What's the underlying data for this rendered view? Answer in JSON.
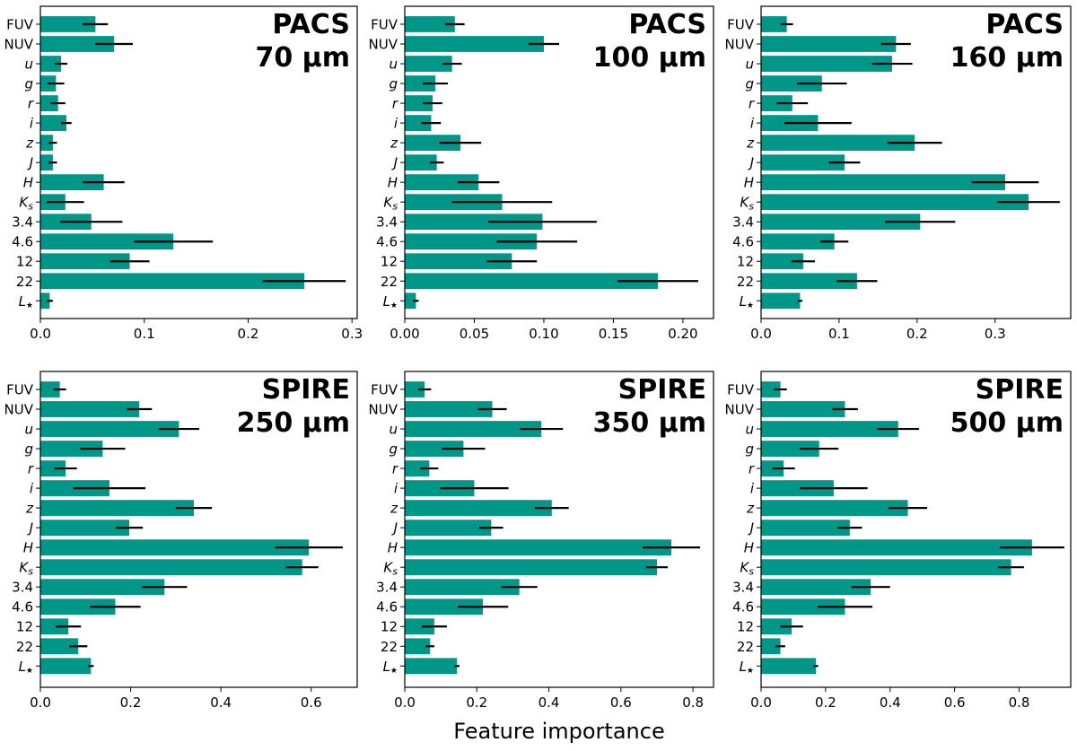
{
  "figure": {
    "xlabel": "Feature importance",
    "bar_color": "#009688",
    "error_color": "#000000"
  },
  "chart_data": [
    {
      "type": "bar",
      "orientation": "horizontal",
      "title_line1": "PACS",
      "title_line2": "70 µm",
      "categories": [
        "FUV",
        "NUV",
        "u",
        "g",
        "r",
        "i",
        "z",
        "J",
        "H",
        "Ks",
        "3.4",
        "4.6",
        "12",
        "22",
        "L★"
      ],
      "values": [
        0.053,
        0.071,
        0.02,
        0.015,
        0.017,
        0.025,
        0.012,
        0.012,
        0.061,
        0.024,
        0.049,
        0.128,
        0.086,
        0.254,
        0.009
      ],
      "errors": [
        0.012,
        0.018,
        0.006,
        0.008,
        0.007,
        0.005,
        0.004,
        0.004,
        0.02,
        0.018,
        0.03,
        0.038,
        0.019,
        0.04,
        0.003
      ],
      "xlim": [
        0,
        0.305
      ],
      "xticks": [
        0.0,
        0.1,
        0.2,
        0.3
      ],
      "xtick_labels": [
        "0.0",
        "0.1",
        "0.2",
        "0.3"
      ]
    },
    {
      "type": "bar",
      "orientation": "horizontal",
      "title_line1": "PACS",
      "title_line2": "100 µm",
      "categories": [
        "FUV",
        "NUV",
        "u",
        "g",
        "r",
        "i",
        "z",
        "J",
        "H",
        "Ks",
        "3.4",
        "4.6",
        "12",
        "22",
        "L★"
      ],
      "values": [
        0.036,
        0.1,
        0.034,
        0.022,
        0.02,
        0.019,
        0.04,
        0.023,
        0.053,
        0.07,
        0.099,
        0.095,
        0.077,
        0.182,
        0.008
      ],
      "errors": [
        0.007,
        0.011,
        0.007,
        0.009,
        0.007,
        0.007,
        0.015,
        0.005,
        0.015,
        0.036,
        0.039,
        0.029,
        0.018,
        0.029,
        0.002
      ],
      "xlim": [
        0,
        0.222
      ],
      "xticks": [
        0.0,
        0.05,
        0.1,
        0.15,
        0.2
      ],
      "xtick_labels": [
        "0.00",
        "0.05",
        "0.10",
        "0.15",
        "0.20"
      ]
    },
    {
      "type": "bar",
      "orientation": "horizontal",
      "title_line1": "PACS",
      "title_line2": "160 µm",
      "categories": [
        "FUV",
        "NUV",
        "u",
        "g",
        "r",
        "i",
        "z",
        "J",
        "H",
        "Ks",
        "3.4",
        "4.6",
        "12",
        "22",
        "L★"
      ],
      "values": [
        0.033,
        0.173,
        0.168,
        0.078,
        0.04,
        0.073,
        0.197,
        0.107,
        0.313,
        0.343,
        0.204,
        0.094,
        0.054,
        0.123,
        0.05
      ],
      "errors": [
        0.008,
        0.019,
        0.026,
        0.032,
        0.02,
        0.043,
        0.035,
        0.02,
        0.043,
        0.04,
        0.045,
        0.018,
        0.015,
        0.026,
        0.003
      ],
      "xlim": [
        0,
        0.397
      ],
      "xticks": [
        0.0,
        0.1,
        0.2,
        0.3
      ],
      "xtick_labels": [
        "0.0",
        "0.1",
        "0.2",
        "0.3"
      ]
    },
    {
      "type": "bar",
      "orientation": "horizontal",
      "title_line1": "SPIRE",
      "title_line2": "250 µm",
      "categories": [
        "FUV",
        "NUV",
        "u",
        "g",
        "r",
        "i",
        "z",
        "J",
        "H",
        "Ks",
        "3.4",
        "4.6",
        "12",
        "22",
        "L★"
      ],
      "values": [
        0.043,
        0.219,
        0.307,
        0.138,
        0.056,
        0.153,
        0.34,
        0.197,
        0.595,
        0.58,
        0.275,
        0.166,
        0.062,
        0.084,
        0.112
      ],
      "errors": [
        0.014,
        0.028,
        0.045,
        0.05,
        0.025,
        0.08,
        0.04,
        0.03,
        0.075,
        0.036,
        0.05,
        0.056,
        0.028,
        0.02,
        0.006
      ],
      "xlim": [
        0,
        0.702
      ],
      "xticks": [
        0.0,
        0.2,
        0.4,
        0.6
      ],
      "xtick_labels": [
        "0.0",
        "0.2",
        "0.4",
        "0.6"
      ]
    },
    {
      "type": "bar",
      "orientation": "horizontal",
      "title_line1": "SPIRE",
      "title_line2": "350 µm",
      "categories": [
        "FUV",
        "NUV",
        "u",
        "g",
        "r",
        "i",
        "z",
        "J",
        "H",
        "Ks",
        "3.4",
        "4.6",
        "12",
        "22",
        "L★"
      ],
      "values": [
        0.055,
        0.243,
        0.379,
        0.163,
        0.068,
        0.193,
        0.408,
        0.24,
        0.74,
        0.7,
        0.318,
        0.217,
        0.082,
        0.07,
        0.145
      ],
      "errors": [
        0.018,
        0.04,
        0.06,
        0.06,
        0.025,
        0.095,
        0.047,
        0.033,
        0.08,
        0.03,
        0.05,
        0.07,
        0.035,
        0.012,
        0.007
      ],
      "xlim": [
        0,
        0.857
      ],
      "xticks": [
        0.0,
        0.2,
        0.4,
        0.6,
        0.8
      ],
      "xtick_labels": [
        "0.0",
        "0.2",
        "0.4",
        "0.6",
        "0.8"
      ]
    },
    {
      "type": "bar",
      "orientation": "horizontal",
      "title_line1": "SPIRE",
      "title_line2": "500 µm",
      "categories": [
        "FUV",
        "NUV",
        "u",
        "g",
        "r",
        "i",
        "z",
        "J",
        "H",
        "Ks",
        "3.4",
        "4.6",
        "12",
        "22",
        "L★"
      ],
      "values": [
        0.06,
        0.26,
        0.425,
        0.18,
        0.07,
        0.225,
        0.455,
        0.275,
        0.84,
        0.775,
        0.34,
        0.26,
        0.095,
        0.06,
        0.17
      ],
      "errors": [
        0.02,
        0.04,
        0.065,
        0.06,
        0.035,
        0.105,
        0.06,
        0.038,
        0.1,
        0.04,
        0.06,
        0.085,
        0.035,
        0.015,
        0.007
      ],
      "xlim": [
        0,
        0.96
      ],
      "xticks": [
        0.0,
        0.2,
        0.4,
        0.6,
        0.8
      ],
      "xtick_labels": [
        "0.0",
        "0.2",
        "0.4",
        "0.6",
        "0.8"
      ]
    }
  ]
}
